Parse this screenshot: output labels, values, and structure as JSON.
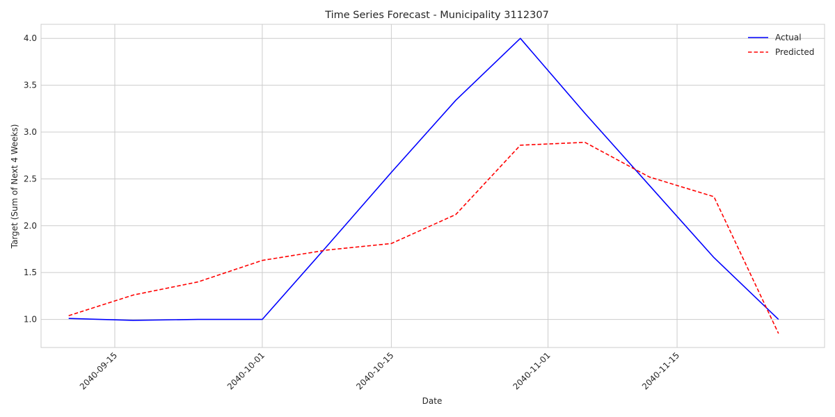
{
  "chart_data": {
    "type": "line",
    "title": "Time Series Forecast - Municipality 3112307",
    "xlabel": "Date",
    "ylabel": "Target (Sum of Next 4 Weeks)",
    "x_type": "date",
    "xlim": [
      "2040-09-07",
      "2040-12-01"
    ],
    "ylim": [
      0.7,
      4.15
    ],
    "x_ticks": [
      "2040-09-15",
      "2040-10-01",
      "2040-10-15",
      "2040-11-01",
      "2040-11-15"
    ],
    "y_ticks": [
      1.0,
      1.5,
      2.0,
      2.5,
      3.0,
      3.5,
      4.0
    ],
    "y_tick_labels": [
      "1.0",
      "1.5",
      "2.0",
      "2.5",
      "3.0",
      "3.5",
      "4.0"
    ],
    "grid": true,
    "legend_position": "top-right",
    "x": [
      "2040-09-10",
      "2040-09-17",
      "2040-09-24",
      "2040-10-01",
      "2040-10-08",
      "2040-10-15",
      "2040-10-22",
      "2040-10-29",
      "2040-11-05",
      "2040-11-12",
      "2040-11-19",
      "2040-11-26"
    ],
    "series": [
      {
        "name": "Actual",
        "color": "#0000ff",
        "style": "solid",
        "values": [
          1.01,
          0.99,
          1.0,
          1.0,
          1.78,
          2.57,
          3.34,
          4.0,
          3.2,
          2.43,
          1.66,
          1.0
        ]
      },
      {
        "name": "Predicted",
        "color": "#ff0000",
        "style": "dashed",
        "values": [
          1.04,
          1.26,
          1.4,
          1.63,
          1.74,
          1.81,
          2.12,
          2.86,
          2.89,
          2.52,
          2.31,
          0.85
        ]
      }
    ]
  }
}
